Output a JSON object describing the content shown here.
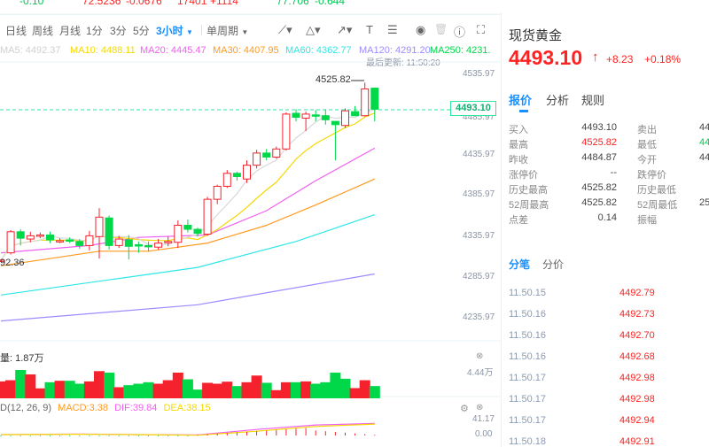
{
  "tickers": [
    {
      "value": "-0.10",
      "color": "#00c853"
    },
    {
      "value": "72.5236",
      "change": "-0.0676",
      "color": "#f22"
    },
    {
      "value": "17401",
      "change": "+1114",
      "color": "#f22"
    },
    {
      "value": "77.706",
      "change": "-0.644",
      "color": "#00c853"
    }
  ],
  "toolbar": {
    "periods": [
      "日线",
      "周线",
      "月线",
      "1分",
      "3分",
      "5分"
    ],
    "active_period": "3小时",
    "single": "单周期"
  },
  "ma_legend": [
    {
      "label": "MA5: 4492.37",
      "color": "#d0d0d0"
    },
    {
      "label": "MA10: 4488.11",
      "color": "#f5d800"
    },
    {
      "label": "MA20: 4445.47",
      "color": "#f060f0"
    },
    {
      "label": "MA30: 4407.95",
      "color": "#ff9a1f"
    },
    {
      "label": "MA60: 4362.77",
      "color": "#2ee6e6"
    },
    {
      "label": "MA120: 4291.20",
      "color": "#9a8cff"
    },
    {
      "label": "MA250: 4231.",
      "color": "#00d84a"
    }
  ],
  "last_update": "最后更新: 11:50:20",
  "colors": {
    "up": "#f5222d",
    "down": "#00d84a",
    "accent": "#1890ff"
  },
  "yaxis": [
    "4535.97",
    "4485.97",
    "4435.97",
    "4385.97",
    "4335.97",
    "4285.97",
    "4235.97"
  ],
  "current_price_tag": "4493.10",
  "high_marker": "4525.82",
  "low_marker": "92.36",
  "chart_data": {
    "type": "candlestick",
    "ylim": [
      4235.97,
      4535.97
    ],
    "candles": [
      [
        4306,
        4307,
        4308,
        4305
      ],
      [
        4316,
        4342,
        4344,
        4314
      ],
      [
        4342,
        4334,
        4345,
        4325
      ],
      [
        4333,
        4337,
        4342,
        4329
      ],
      [
        4337,
        4338,
        4341,
        4334
      ],
      [
        4338,
        4332,
        4342,
        4328
      ],
      [
        4330,
        4331,
        4334,
        4328
      ],
      [
        4332,
        4331,
        4335,
        4328
      ],
      [
        4330,
        4325,
        4333,
        4321
      ],
      [
        4325,
        4337,
        4343,
        4319
      ],
      [
        4336,
        4360,
        4371,
        4309
      ],
      [
        4359,
        4325,
        4362,
        4320
      ],
      [
        4325,
        4333,
        4337,
        4322
      ],
      [
        4332,
        4324,
        4338,
        4308
      ],
      [
        4326,
        4325,
        4330,
        4316
      ],
      [
        4325,
        4324,
        4330,
        4318
      ],
      [
        4323,
        4328,
        4333,
        4320
      ],
      [
        4329,
        4330,
        4336,
        4324
      ],
      [
        4329,
        4350,
        4356,
        4322
      ],
      [
        4350,
        4345,
        4357,
        4341
      ],
      [
        4345,
        4340,
        4347,
        4336
      ],
      [
        4339,
        4382,
        4385,
        4337
      ],
      [
        4382,
        4398,
        4400,
        4376
      ],
      [
        4398,
        4414,
        4418,
        4396
      ],
      [
        4414,
        4410,
        4416,
        4405
      ],
      [
        4407,
        4424,
        4430,
        4402
      ],
      [
        4424,
        4439,
        4443,
        4420
      ],
      [
        4439,
        4434,
        4444,
        4430
      ],
      [
        4434,
        4444,
        4447,
        4432
      ],
      [
        4444,
        4487,
        4489,
        4442
      ],
      [
        4488,
        4483,
        4493,
        4478
      ],
      [
        4482,
        4487,
        4490,
        4466
      ],
      [
        4486,
        4485,
        4492,
        4478
      ],
      [
        4485,
        4480,
        4493,
        4474
      ],
      [
        4478,
        4474,
        4478,
        4430
      ],
      [
        4473,
        4491,
        4494,
        4470
      ],
      [
        4490,
        4485,
        4497,
        4486
      ],
      [
        4485,
        4518,
        4525.82,
        4484
      ],
      [
        4519,
        4493,
        4519,
        4478
      ]
    ],
    "ma": [
      {
        "name": "MA20",
        "color": "#f060f0",
        "points": [
          [
            0,
            4316
          ],
          [
            9,
            4325
          ],
          [
            14,
            4335
          ],
          [
            21,
            4338
          ],
          [
            27,
            4368
          ],
          [
            32,
            4405
          ],
          [
            38,
            4445
          ]
        ]
      },
      {
        "name": "MA30",
        "color": "#ff9a1f",
        "points": [
          [
            0,
            4300
          ],
          [
            10,
            4318
          ],
          [
            15,
            4318
          ],
          [
            21,
            4328
          ],
          [
            27,
            4350
          ],
          [
            32,
            4375
          ],
          [
            38,
            4407
          ]
        ]
      },
      {
        "name": "MA60",
        "color": "#2ee6e6",
        "points": [
          [
            0,
            4264
          ],
          [
            20,
            4298
          ],
          [
            30,
            4330
          ],
          [
            38,
            4363
          ]
        ]
      },
      {
        "name": "MA120",
        "color": "#9a8cff",
        "points": [
          [
            0,
            4232
          ],
          [
            20,
            4252
          ],
          [
            38,
            4290
          ]
        ]
      }
    ],
    "volume": {
      "label": "量: 1.87万",
      "max_label": "4.44万",
      "max": 4.44,
      "values": [
        2.65,
        2.84,
        4.44,
        3.75,
        1.56,
        2.52,
        2.75,
        2.75,
        2.29,
        2.65,
        4.26,
        4.03,
        1.74,
        2.06,
        2.29,
        2.52,
        2.29,
        2.84,
        4.03,
        2.98,
        1.37,
        2.43,
        2.29,
        2.61,
        1.92,
        2.52,
        3.57,
        2.43,
        1.28,
        2.52,
        2.52,
        2.65,
        2.29,
        2.52,
        4.03,
        3.07,
        1.6,
        2.84,
        1.92
      ],
      "dir": "rrgrrgrggrrgrgggrrrggrrrgrrgrrgrggggrrg"
    },
    "macd": {
      "name": "D(12, 26, 9)",
      "macd": "MACD:3.38",
      "dif": "DIF:39.84",
      "dea": "DEA:38.15",
      "top_label": "41.17",
      "zero_label": "0.00",
      "max": 41.17,
      "dif_points": [
        [
          0,
          3
        ],
        [
          8,
          5
        ],
        [
          14,
          3
        ],
        [
          20,
          2
        ],
        [
          26,
          20
        ],
        [
          32,
          35
        ],
        [
          38,
          40
        ]
      ],
      "dea_points": [
        [
          0,
          3
        ],
        [
          8,
          4
        ],
        [
          14,
          3
        ],
        [
          20,
          1
        ],
        [
          26,
          14
        ],
        [
          32,
          30
        ],
        [
          38,
          38
        ]
      ]
    }
  },
  "quote": {
    "name": "现货黄金",
    "price": "4493.10",
    "change": "+8.23",
    "pct": "+0.18%",
    "tabs": [
      "报价",
      "分析",
      "规则"
    ],
    "rows": [
      [
        "买入",
        "4493.10",
        "卖出",
        "44"
      ],
      [
        "最高",
        "4525.82",
        "最低",
        "44"
      ],
      [
        "昨收",
        "4484.87",
        "今开",
        "44"
      ],
      [
        "涨停价",
        "--",
        "跌停价",
        ""
      ],
      [
        "历史最高",
        "4525.82",
        "历史最低",
        ""
      ],
      [
        "52周最高",
        "4525.82",
        "52周最低",
        "25"
      ],
      [
        "点差",
        "0.14",
        "振幅",
        ""
      ]
    ]
  },
  "trades": {
    "tabs": [
      "分笔",
      "分价"
    ],
    "items": [
      [
        "11.50.15",
        "4492.79"
      ],
      [
        "11.50.16",
        "4492.73"
      ],
      [
        "11.50.16",
        "4492.70"
      ],
      [
        "11.50.16",
        "4492.68"
      ],
      [
        "11.50.17",
        "4492.98"
      ],
      [
        "11.50.17",
        "4492.98"
      ],
      [
        "11.50.17",
        "4492.94"
      ],
      [
        "11.50.18",
        "4492.91"
      ]
    ]
  }
}
